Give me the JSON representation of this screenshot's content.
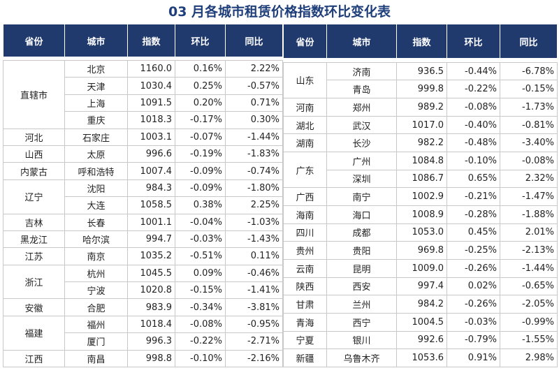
{
  "title": "03 月各城市租赁价格指数环比变化表",
  "header": [
    "省份",
    "城市",
    "指数",
    "环比",
    "同比",
    "省份",
    "城市",
    "指数",
    "环比",
    "同比"
  ],
  "left": [
    {
      "province": "直辖市",
      "cities": [
        {
          "city": "北京",
          "index": "1160.0",
          "mom": "0.16%",
          "yoy": "2.22%"
        },
        {
          "city": "天津",
          "index": "1030.4",
          "mom": "0.25%",
          "yoy": "-0.57%"
        },
        {
          "city": "上海",
          "index": "1091.5",
          "mom": "0.20%",
          "yoy": "0.71%"
        },
        {
          "city": "重庆",
          "index": "1018.3",
          "mom": "-0.17%",
          "yoy": "0.30%"
        }
      ]
    },
    {
      "province": "河北",
      "cities": [
        {
          "city": "石家庄",
          "index": "1003.1",
          "mom": "-0.07%",
          "yoy": "-1.44%"
        }
      ]
    },
    {
      "province": "山西",
      "cities": [
        {
          "city": "太原",
          "index": "996.6",
          "mom": "-0.19%",
          "yoy": "-1.83%"
        }
      ]
    },
    {
      "province": "内蒙古",
      "cities": [
        {
          "city": "呼和浩特",
          "index": "1007.4",
          "mom": "-0.09%",
          "yoy": "-0.74%"
        }
      ]
    },
    {
      "province": "辽宁",
      "cities": [
        {
          "city": "沈阳",
          "index": "984.3",
          "mom": "-0.09%",
          "yoy": "-1.80%"
        },
        {
          "city": "大连",
          "index": "1058.5",
          "mom": "0.38%",
          "yoy": "2.25%"
        }
      ]
    },
    {
      "province": "吉林",
      "cities": [
        {
          "city": "长春",
          "index": "1001.1",
          "mom": "-0.04%",
          "yoy": "-1.03%"
        }
      ]
    },
    {
      "province": "黑龙江",
      "cities": [
        {
          "city": "哈尔滨",
          "index": "994.7",
          "mom": "-0.03%",
          "yoy": "-1.43%"
        }
      ]
    },
    {
      "province": "江苏",
      "cities": [
        {
          "city": "南京",
          "index": "1035.2",
          "mom": "-0.51%",
          "yoy": "0.11%"
        }
      ]
    },
    {
      "province": "浙江",
      "cities": [
        {
          "city": "杭州",
          "index": "1045.5",
          "mom": "0.09%",
          "yoy": "-0.46%"
        },
        {
          "city": "宁波",
          "index": "1020.8",
          "mom": "-0.15%",
          "yoy": "-1.41%"
        }
      ]
    },
    {
      "province": "安徽",
      "cities": [
        {
          "city": "合肥",
          "index": "983.9",
          "mom": "-0.34%",
          "yoy": "-3.81%"
        }
      ]
    },
    {
      "province": "福建",
      "cities": [
        {
          "city": "福州",
          "index": "1018.4",
          "mom": "-0.08%",
          "yoy": "-0.95%"
        },
        {
          "city": "厦门",
          "index": "996.3",
          "mom": "-0.22%",
          "yoy": "-2.71%"
        }
      ]
    },
    {
      "province": "江西",
      "cities": [
        {
          "city": "南昌",
          "index": "998.8",
          "mom": "-0.10%",
          "yoy": "-2.16%"
        }
      ]
    }
  ],
  "right": [
    {
      "province": "山东",
      "cities": [
        {
          "city": "济南",
          "index": "936.5",
          "mom": "-0.44%",
          "yoy": "-6.78%"
        },
        {
          "city": "青岛",
          "index": "999.8",
          "mom": "-0.22%",
          "yoy": "-0.15%"
        }
      ]
    },
    {
      "province": "河南",
      "cities": [
        {
          "city": "郑州",
          "index": "989.2",
          "mom": "-0.08%",
          "yoy": "-1.73%"
        }
      ]
    },
    {
      "province": "湖北",
      "cities": [
        {
          "city": "武汉",
          "index": "1017.0",
          "mom": "-0.40%",
          "yoy": "-0.81%"
        }
      ]
    },
    {
      "province": "湖南",
      "cities": [
        {
          "city": "长沙",
          "index": "982.2",
          "mom": "-0.48%",
          "yoy": "-3.40%"
        }
      ]
    },
    {
      "province": "广东",
      "cities": [
        {
          "city": "广州",
          "index": "1084.8",
          "mom": "-0.10%",
          "yoy": "-0.08%"
        },
        {
          "city": "深圳",
          "index": "1086.7",
          "mom": "0.65%",
          "yoy": "2.32%"
        }
      ]
    },
    {
      "province": "广西",
      "cities": [
        {
          "city": "南宁",
          "index": "1002.9",
          "mom": "-0.21%",
          "yoy": "-1.47%"
        }
      ]
    },
    {
      "province": "海南",
      "cities": [
        {
          "city": "海口",
          "index": "1008.9",
          "mom": "-0.28%",
          "yoy": "-1.88%"
        }
      ]
    },
    {
      "province": "四川",
      "cities": [
        {
          "city": "成都",
          "index": "1053.0",
          "mom": "0.45%",
          "yoy": "2.01%"
        }
      ]
    },
    {
      "province": "贵州",
      "cities": [
        {
          "city": "贵阳",
          "index": "969.8",
          "mom": "-0.25%",
          "yoy": "-2.13%"
        }
      ]
    },
    {
      "province": "云南",
      "cities": [
        {
          "city": "昆明",
          "index": "1009.0",
          "mom": "-0.26%",
          "yoy": "-1.44%"
        }
      ]
    },
    {
      "province": "陕西",
      "cities": [
        {
          "city": "西安",
          "index": "997.4",
          "mom": "0.02%",
          "yoy": "-0.65%"
        }
      ]
    },
    {
      "province": "甘肃",
      "cities": [
        {
          "city": "兰州",
          "index": "984.2",
          "mom": "-0.26%",
          "yoy": "-2.05%"
        }
      ]
    },
    {
      "province": "青海",
      "cities": [
        {
          "city": "西宁",
          "index": "1004.5",
          "mom": "-0.03%",
          "yoy": "-0.99%"
        }
      ]
    },
    {
      "province": "宁夏",
      "cities": [
        {
          "city": "银川",
          "index": "992.6",
          "mom": "-0.79%",
          "yoy": "-1.55%"
        }
      ]
    },
    {
      "province": "新疆",
      "cities": [
        {
          "city": "乌鲁木齐",
          "index": "1053.6",
          "mom": "0.91%",
          "yoy": "2.98%"
        }
      ]
    }
  ]
}
